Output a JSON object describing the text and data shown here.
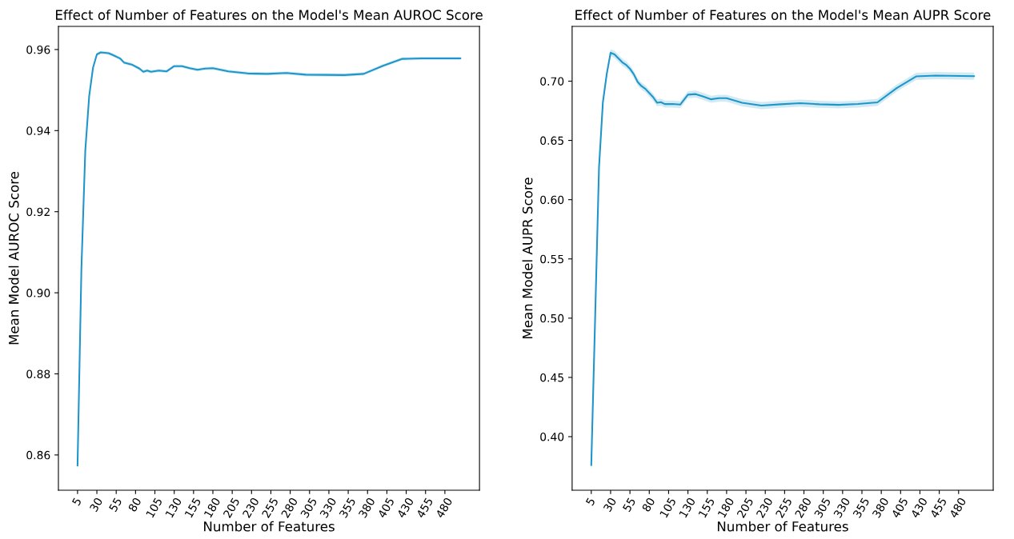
{
  "chart_data": [
    {
      "type": "line",
      "title": "Effect of Number of Features on the Model's Mean AUROC Score",
      "xlabel": "Number of Features",
      "ylabel": "Mean Model AUROC Score",
      "x": [
        5,
        10,
        15,
        20,
        25,
        30,
        35,
        45,
        50,
        60,
        65,
        75,
        85,
        90,
        95,
        100,
        110,
        120,
        130,
        140,
        150,
        160,
        170,
        180,
        200,
        225,
        250,
        275,
        300,
        350,
        375,
        400,
        425,
        450,
        500
      ],
      "series": [
        {
          "color": "#1f96c9",
          "values": [
            0.8574,
            0.906,
            0.935,
            0.9484,
            0.9555,
            0.9588,
            0.9593,
            0.9591,
            0.9587,
            0.9578,
            0.9568,
            0.9563,
            0.9553,
            0.9545,
            0.9548,
            0.9545,
            0.9548,
            0.9546,
            0.9559,
            0.9559,
            0.9554,
            0.955,
            0.9553,
            0.9554,
            0.9546,
            0.9541,
            0.954,
            0.9542,
            0.9538,
            0.9537,
            0.954,
            0.956,
            0.9577,
            0.9578,
            0.9578
          ],
          "lower": [
            0.857,
            0.9056,
            0.9346,
            0.948,
            0.9551,
            0.9584,
            0.9589,
            0.9587,
            0.9583,
            0.9574,
            0.9564,
            0.9559,
            0.9549,
            0.9541,
            0.9544,
            0.9541,
            0.9544,
            0.9542,
            0.9555,
            0.9555,
            0.955,
            0.9546,
            0.9549,
            0.955,
            0.9542,
            0.9537,
            0.9536,
            0.9538,
            0.9534,
            0.9533,
            0.9536,
            0.9556,
            0.9573,
            0.9574,
            0.9574
          ],
          "upper": [
            0.8578,
            0.9064,
            0.9354,
            0.9488,
            0.9559,
            0.9592,
            0.9597,
            0.9595,
            0.9591,
            0.9582,
            0.9572,
            0.9567,
            0.9557,
            0.9549,
            0.9552,
            0.9549,
            0.9552,
            0.955,
            0.9563,
            0.9563,
            0.9558,
            0.9554,
            0.9557,
            0.9558,
            0.955,
            0.9545,
            0.9544,
            0.9546,
            0.9542,
            0.9541,
            0.9544,
            0.9564,
            0.9581,
            0.9582,
            0.9582
          ]
        }
      ],
      "xlim": [
        -19.75,
        524.75
      ],
      "xticks": [
        5,
        30,
        55,
        80,
        105,
        130,
        155,
        180,
        205,
        230,
        255,
        280,
        305,
        330,
        355,
        380,
        405,
        430,
        455,
        480
      ],
      "ylim": [
        0.8513,
        0.9657
      ],
      "yticks": [
        {
          "value": 0.86,
          "label": "0.86"
        },
        {
          "value": 0.88,
          "label": "0.88"
        },
        {
          "value": 0.9,
          "label": "0.90"
        },
        {
          "value": 0.92,
          "label": "0.92"
        },
        {
          "value": 0.94,
          "label": "0.94"
        },
        {
          "value": 0.96,
          "label": "0.96"
        }
      ],
      "grid": false,
      "marker": "none",
      "line_style": "solid"
    },
    {
      "type": "line",
      "title": "Effect of Number of Features on the Model's Mean AUPR Score",
      "xlabel": "Number of Features",
      "ylabel": "Mean Model AUPR Score",
      "x": [
        5,
        10,
        15,
        20,
        25,
        30,
        35,
        45,
        50,
        55,
        60,
        65,
        70,
        75,
        85,
        90,
        95,
        100,
        110,
        120,
        130,
        140,
        150,
        160,
        170,
        180,
        200,
        225,
        250,
        275,
        300,
        325,
        350,
        375,
        400,
        425,
        450,
        500
      ],
      "series": [
        {
          "color": "#1f96c9",
          "values": [
            0.376,
            0.5,
            0.627,
            0.682,
            0.706,
            0.724,
            0.7226,
            0.716,
            0.7138,
            0.7105,
            0.7058,
            0.6993,
            0.6958,
            0.6935,
            0.6865,
            0.6818,
            0.6823,
            0.6807,
            0.6807,
            0.6802,
            0.6886,
            0.6891,
            0.687,
            0.6847,
            0.6856,
            0.6856,
            0.6818,
            0.6794,
            0.6805,
            0.6814,
            0.6805,
            0.68,
            0.6807,
            0.6821,
            0.6942,
            0.704,
            0.7047,
            0.7042
          ],
          "lower": [
            0.373,
            0.497,
            0.624,
            0.679,
            0.703,
            0.721,
            0.7196,
            0.713,
            0.7108,
            0.7075,
            0.7028,
            0.6963,
            0.6928,
            0.6905,
            0.6835,
            0.6788,
            0.6793,
            0.6777,
            0.6777,
            0.6772,
            0.6856,
            0.6861,
            0.684,
            0.6817,
            0.6826,
            0.6826,
            0.6788,
            0.6764,
            0.6775,
            0.6784,
            0.6775,
            0.677,
            0.6777,
            0.6791,
            0.6912,
            0.701,
            0.7017,
            0.7012
          ],
          "upper": [
            0.379,
            0.503,
            0.63,
            0.685,
            0.709,
            0.727,
            0.7256,
            0.719,
            0.7168,
            0.7135,
            0.7088,
            0.7023,
            0.6988,
            0.6965,
            0.6895,
            0.6848,
            0.6853,
            0.6837,
            0.6837,
            0.6832,
            0.6916,
            0.6921,
            0.69,
            0.6877,
            0.6886,
            0.6886,
            0.6848,
            0.6824,
            0.6835,
            0.6844,
            0.6835,
            0.683,
            0.6837,
            0.6851,
            0.6972,
            0.707,
            0.7077,
            0.7072
          ]
        }
      ],
      "xlim": [
        -19.75,
        524.75
      ],
      "xticks": [
        5,
        30,
        55,
        80,
        105,
        130,
        155,
        180,
        205,
        230,
        255,
        280,
        305,
        330,
        355,
        380,
        405,
        430,
        455,
        480
      ],
      "ylim": [
        0.3548,
        0.7462
      ],
      "yticks": [
        {
          "value": 0.4,
          "label": "0.40"
        },
        {
          "value": 0.45,
          "label": "0.45"
        },
        {
          "value": 0.5,
          "label": "0.50"
        },
        {
          "value": 0.55,
          "label": "0.55"
        },
        {
          "value": 0.6,
          "label": "0.60"
        },
        {
          "value": 0.65,
          "label": "0.65"
        },
        {
          "value": 0.7,
          "label": "0.70"
        }
      ],
      "grid": false,
      "marker": "none",
      "line_style": "solid"
    }
  ]
}
